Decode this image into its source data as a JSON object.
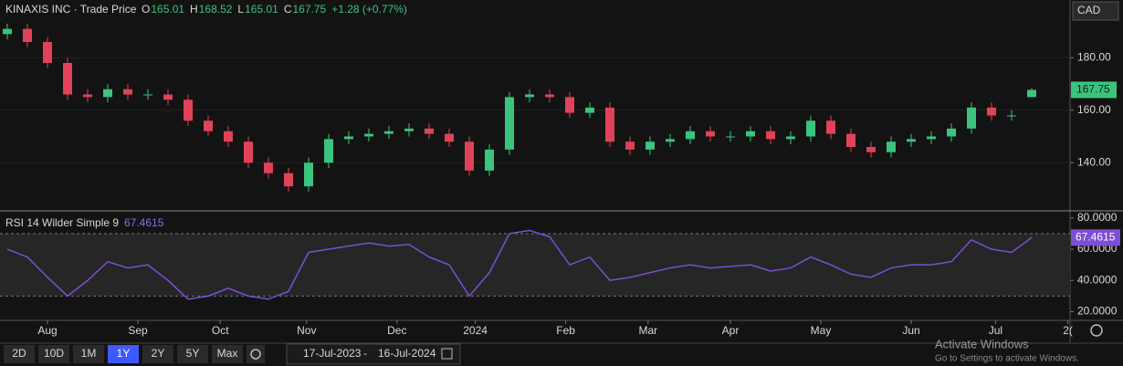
{
  "header": {
    "title": "KINAXIS INC · Trade Price",
    "open_label": "O",
    "open": "165.01",
    "high_label": "H",
    "high": "168.52",
    "low_label": "L",
    "low": "165.01",
    "close_label": "C",
    "close": "167.75",
    "change": "+1.28 (+0.77%)",
    "currency": "CAD"
  },
  "chart_data": [
    {
      "type": "candlestick",
      "categories": [
        null,
        null,
        null,
        null,
        null,
        null,
        null,
        null,
        null,
        null,
        null,
        null,
        null,
        null,
        null,
        null,
        null,
        null,
        null,
        null,
        null,
        null,
        null,
        null,
        null,
        null,
        null,
        null,
        null,
        null,
        null,
        null,
        null,
        null,
        null,
        null,
        null,
        null,
        null,
        null,
        null,
        null,
        null,
        null,
        null,
        null,
        null,
        null,
        null,
        null,
        null,
        null
      ],
      "open": [
        189,
        191,
        186,
        178,
        166,
        165,
        168,
        166,
        166,
        164,
        156,
        152,
        148,
        140,
        136,
        131,
        140,
        149,
        150,
        151,
        152,
        153,
        151,
        148,
        137,
        145,
        165,
        166,
        165,
        159,
        161,
        148,
        145,
        148,
        149,
        152,
        150,
        150,
        152,
        149,
        150,
        156,
        151,
        146,
        144,
        148,
        149,
        150,
        153,
        161,
        158,
        165.01
      ],
      "high": [
        193,
        193,
        188,
        180,
        168,
        170,
        170,
        168,
        168,
        166,
        158,
        154,
        150,
        142,
        138,
        142,
        151,
        152,
        153,
        154,
        155,
        155,
        153,
        150,
        147,
        167,
        168,
        168,
        167,
        163,
        163,
        150,
        150,
        151,
        154,
        154,
        152,
        154,
        154,
        152,
        158,
        158,
        153,
        148,
        150,
        151,
        152,
        155,
        163,
        163,
        160,
        168.52
      ],
      "low": [
        187,
        184,
        176,
        164,
        163,
        163,
        164,
        164,
        162,
        154,
        150,
        146,
        138,
        134,
        129,
        129,
        138,
        147,
        148,
        149,
        150,
        149,
        146,
        135,
        135,
        143,
        163,
        163,
        157,
        157,
        146,
        143,
        143,
        146,
        147,
        148,
        148,
        148,
        147,
        147,
        148,
        149,
        144,
        142,
        142,
        146,
        147,
        148,
        151,
        156,
        156,
        165.01
      ],
      "close": [
        191,
        186,
        178,
        166,
        165,
        168,
        166,
        166,
        164,
        156,
        152,
        148,
        140,
        136,
        131,
        140,
        149,
        150,
        151,
        152,
        153,
        151,
        148,
        137,
        145,
        165,
        166,
        165,
        159,
        161,
        148,
        145,
        148,
        149,
        152,
        150,
        150,
        152,
        149,
        150,
        156,
        151,
        146,
        144,
        148,
        149,
        150,
        153,
        161,
        158,
        158,
        167.75
      ],
      "up_color": "#3ac47d",
      "down_color": "#e0425a",
      "ylim": [
        122,
        202
      ],
      "yticks": [
        {
          "value": 140,
          "label": "140.00"
        },
        {
          "value": 160,
          "label": "160.00"
        },
        {
          "value": 180,
          "label": "180.00"
        }
      ],
      "last_value": {
        "value": 167.75,
        "label": "167.75"
      },
      "xticks": [
        {
          "value": 2,
          "label": "Aug"
        },
        {
          "value": 6.5,
          "label": "Sep"
        },
        {
          "value": 10.6,
          "label": "Oct"
        },
        {
          "value": 14.9,
          "label": "Nov"
        },
        {
          "value": 19.4,
          "label": "Dec"
        },
        {
          "value": 23.3,
          "label": "2024"
        },
        {
          "value": 27.8,
          "label": "Feb"
        },
        {
          "value": 31.9,
          "label": "Mar"
        },
        {
          "value": 36,
          "label": "Apr"
        },
        {
          "value": 40.5,
          "label": "May"
        },
        {
          "value": 45,
          "label": "Jun"
        },
        {
          "value": 49.2,
          "label": "Jul"
        },
        {
          "value": 52.8,
          "label": "2("
        }
      ]
    },
    {
      "type": "line",
      "title": "RSI 14 Wilder Simple 9",
      "current": {
        "value": 67.4615,
        "label": "67.4615"
      },
      "series": [
        {
          "name": "RSI",
          "color": "#7b4fd6",
          "values": [
            60,
            55,
            42,
            30,
            40,
            52,
            48,
            50,
            40,
            28,
            30,
            35,
            30,
            28,
            33,
            58,
            60,
            62,
            64,
            62,
            63,
            55,
            50,
            30,
            45,
            70,
            72,
            68,
            50,
            55,
            40,
            42,
            45,
            48,
            50,
            48,
            49,
            50,
            46,
            48,
            55,
            50,
            44,
            42,
            48,
            50,
            50,
            52,
            66,
            60,
            58,
            67.4615
          ]
        }
      ],
      "ylim": [
        15,
        84
      ],
      "yticks": [
        {
          "value": 20,
          "label": "20.0000"
        },
        {
          "value": 40,
          "label": "40.0000"
        },
        {
          "value": 60,
          "label": "60.0000"
        },
        {
          "value": 80,
          "label": "80.0000"
        }
      ],
      "bands": [
        30,
        70
      ]
    }
  ],
  "toolbar": {
    "ranges": [
      "2D",
      "10D",
      "1M",
      "1Y",
      "2Y",
      "5Y",
      "Max"
    ],
    "active": "1Y",
    "from": "17-Jul-2023",
    "separator": "-",
    "to": "16-Jul-2024"
  },
  "watermark": {
    "title": "Activate Windows",
    "text": "Go to Settings to activate Windows."
  }
}
